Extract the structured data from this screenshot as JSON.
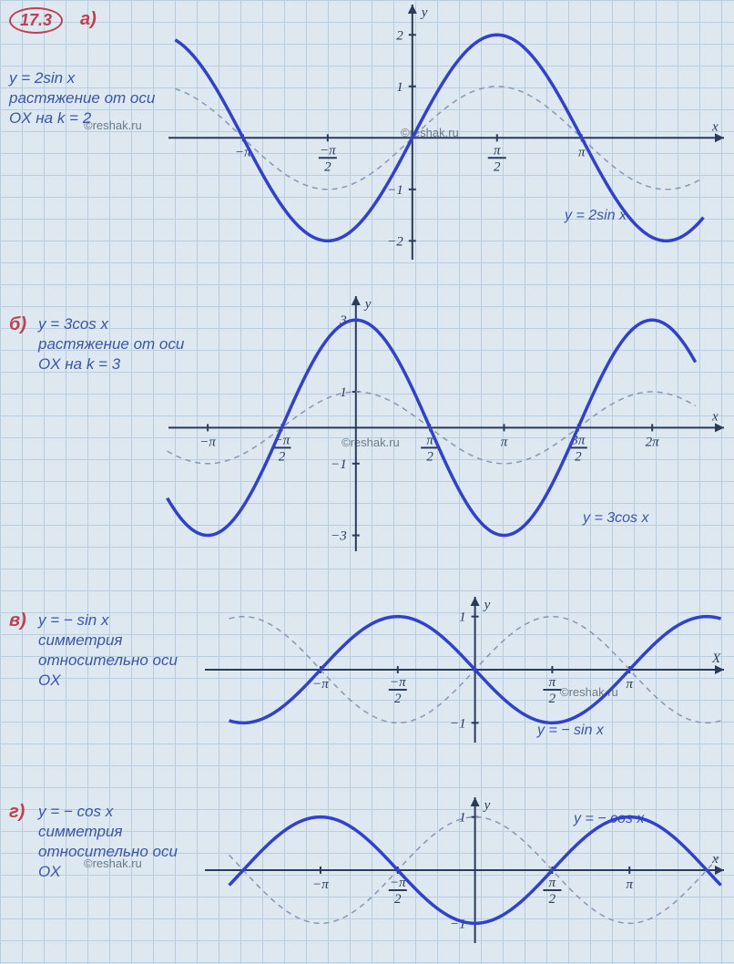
{
  "problem_number": "17.3",
  "watermark": "©reshak.ru",
  "colors": {
    "grid": "#b8cde0",
    "paper": "#dde8f0",
    "ink_red": "#c04050",
    "ink_blue": "#3a55b0",
    "curve_main": "#3040d0",
    "curve_dash": "#8a95b5",
    "axis": "#2a3a5a"
  },
  "parts": {
    "a": {
      "label": "a)",
      "formula": "y = 2sin x",
      "note": "растяжение от оси OX на k = 2",
      "curve_label": "y = 2sin x",
      "chart": {
        "type": "line",
        "x_axis_label": "x",
        "y_axis_label": "y",
        "x_ticks": [
          "-π",
          "-π/2",
          "π/2",
          "π"
        ],
        "y_ticks": [
          "-2",
          "-1",
          "1",
          "2"
        ],
        "ylim": [
          -2.2,
          2.4
        ],
        "xlim": [
          -4.4,
          5.4
        ],
        "main_amplitude": 2,
        "dash_amplitude": 1,
        "func": "sin"
      }
    },
    "b": {
      "label": "б)",
      "formula": "y = 3cos x",
      "note": "растяжение от оси OX на k = 3",
      "curve_label": "y = 3cos x",
      "chart": {
        "type": "line",
        "x_axis_label": "x",
        "y_axis_label": "y",
        "x_ticks": [
          "-π",
          "-π/2",
          "π/2",
          "π",
          "3π/2",
          "2π"
        ],
        "y_ticks": [
          "-3",
          "-1",
          "1",
          "3"
        ],
        "ylim": [
          -3.2,
          3.4
        ],
        "xlim": [
          -4.0,
          7.2
        ],
        "main_amplitude": 3,
        "dash_amplitude": 1,
        "func": "cos"
      }
    },
    "v": {
      "label": "в)",
      "formula": "y = − sin x",
      "note": "симметрия относительно оси OX",
      "curve_label": "y = − sin x",
      "chart": {
        "type": "line",
        "x_axis_label": "X",
        "y_axis_label": "y",
        "x_ticks": [
          "-π",
          "-π/2",
          "π/2",
          "π"
        ],
        "y_ticks": [
          "-1",
          "1"
        ],
        "ylim": [
          -1.2,
          1.2
        ],
        "xlim": [
          -5.0,
          5.0
        ],
        "main_amplitude": -1,
        "dash_amplitude": 1,
        "func": "sin"
      }
    },
    "g": {
      "label": "г)",
      "formula": "y = − cos x",
      "note": "симметрия относительно оси OX",
      "curve_label": "y = − cos x",
      "chart": {
        "type": "line",
        "x_axis_label": "x",
        "y_axis_label": "y",
        "x_ticks": [
          "-π",
          "-π/2",
          "π/2",
          "π"
        ],
        "y_ticks": [
          "-1",
          "1"
        ],
        "ylim": [
          -1.2,
          1.2
        ],
        "xlim": [
          -5.0,
          5.0
        ],
        "main_amplitude": -1,
        "dash_amplitude": 1,
        "func": "cos"
      }
    }
  }
}
